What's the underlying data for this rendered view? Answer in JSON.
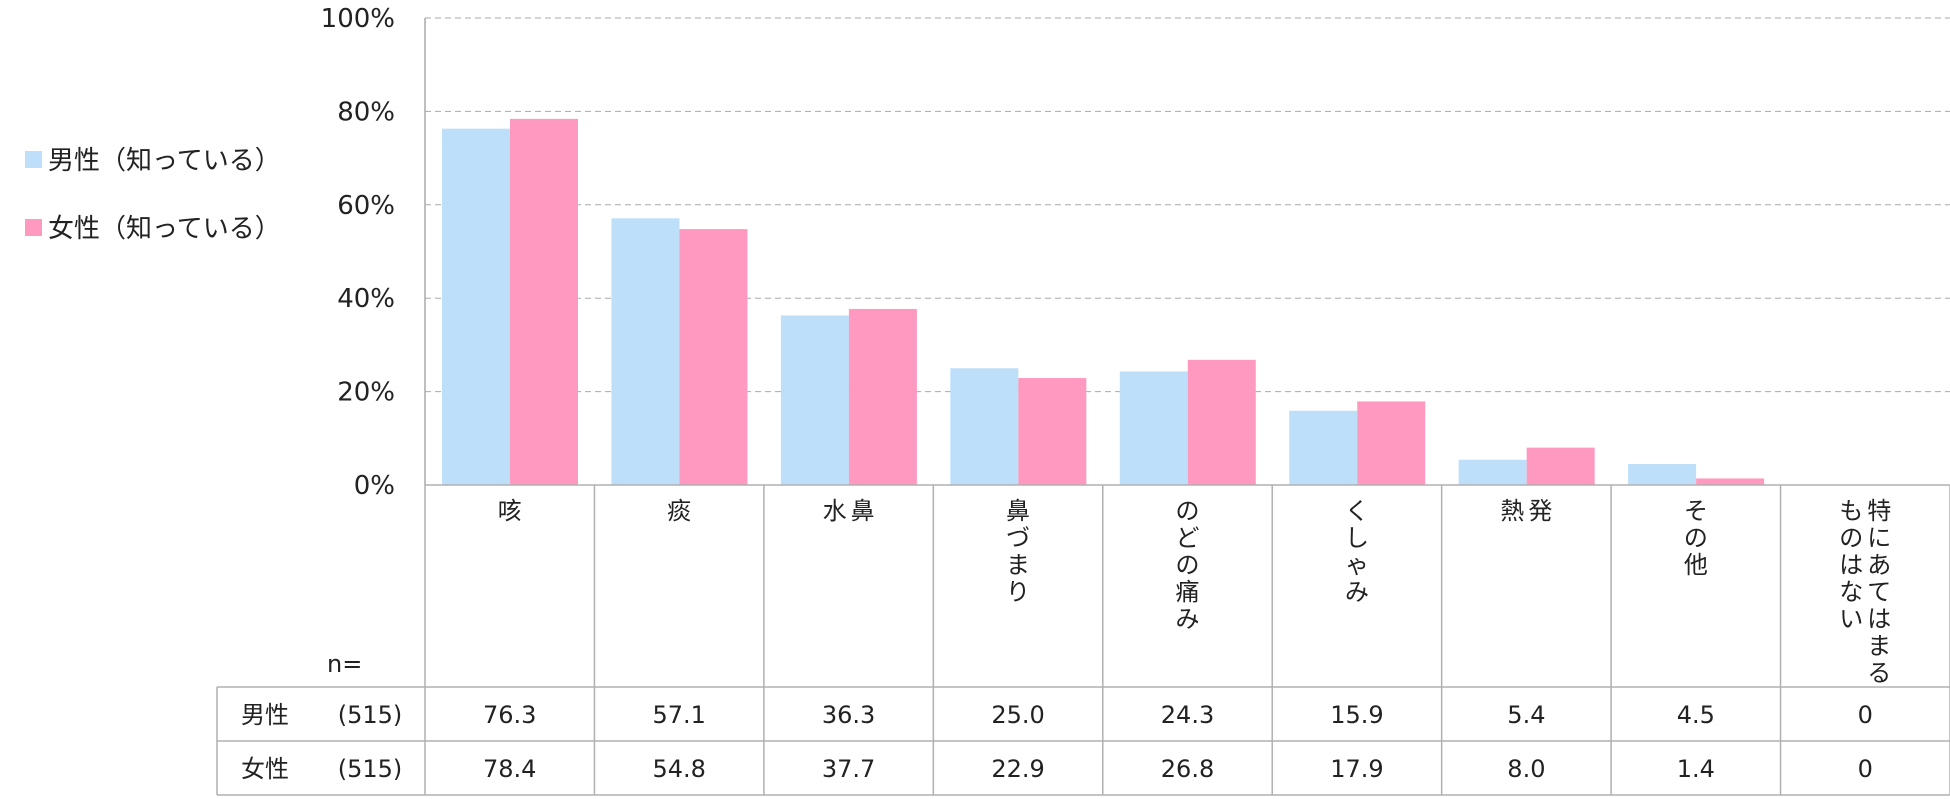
{
  "chart_data": {
    "type": "bar",
    "categories": [
      "咳",
      "痰",
      "鼻水",
      "鼻づまり",
      "のどの痛み",
      "くしゃみ",
      "発熱",
      "その他",
      "特にあてはまるものはない"
    ],
    "category_label_lines": [
      [
        "咳"
      ],
      [
        "痰"
      ],
      [
        "鼻",
        "水"
      ],
      [
        "鼻づまり"
      ],
      [
        "のどの痛み"
      ],
      [
        "くしゃみ"
      ],
      [
        "発",
        "熱"
      ],
      [
        "その他"
      ],
      [
        "特にあてはまる",
        "ものはない"
      ]
    ],
    "series": [
      {
        "name": "男性（知っている）",
        "row_label": "男性",
        "n": "(515)",
        "color": "#BDDFFA",
        "values": [
          76.3,
          57.1,
          36.3,
          25.0,
          24.3,
          15.9,
          5.4,
          4.5,
          0
        ],
        "value_labels": [
          "76.3",
          "57.1",
          "36.3",
          "25.0",
          "24.3",
          "15.9",
          "5.4",
          "4.5",
          "0"
        ]
      },
      {
        "name": "女性（知っている）",
        "row_label": "女性",
        "n": "(515)",
        "color": "#FF99BF",
        "values": [
          78.4,
          54.8,
          37.7,
          22.9,
          26.8,
          17.9,
          8.0,
          1.4,
          0
        ],
        "value_labels": [
          "78.4",
          "54.8",
          "37.7",
          "22.9",
          "26.8",
          "17.9",
          "8.0",
          "1.4",
          "0"
        ]
      }
    ],
    "yticks": [
      "0%",
      "20%",
      "40%",
      "60%",
      "80%",
      "100%"
    ],
    "ylim": [
      0,
      100
    ],
    "n_label": "n=",
    "grid": true,
    "legend_position": "left"
  }
}
